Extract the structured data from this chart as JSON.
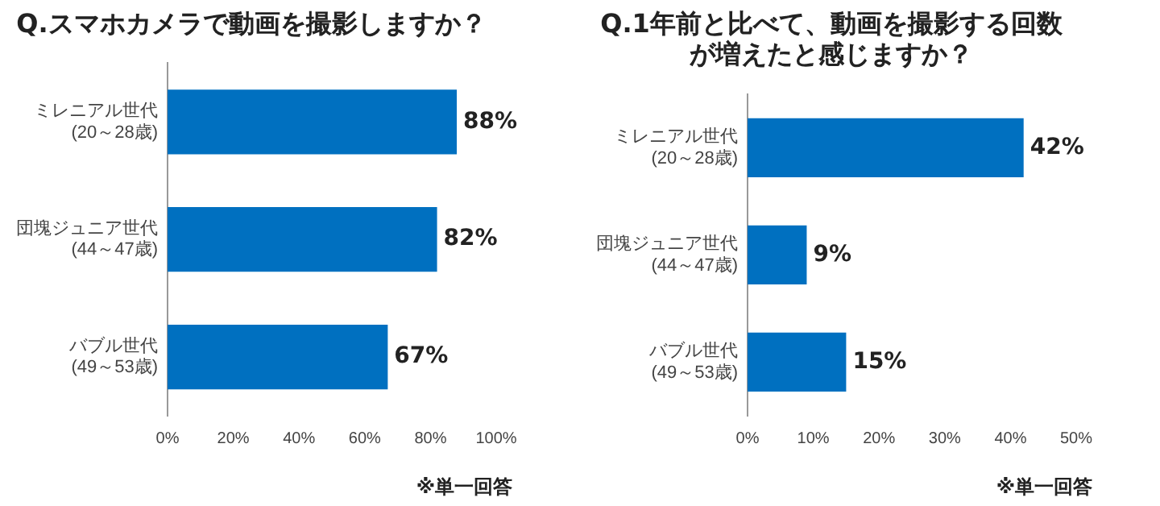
{
  "chart_data": [
    {
      "type": "bar",
      "orientation": "horizontal",
      "title": "Q.スマホカメラで動画を撮影しますか？",
      "categories": [
        "ミレニアル世代(20～28歳)",
        "団塊ジュニア世代(44～47歳)",
        "バブル世代(49～53歳)"
      ],
      "values": [
        88,
        82,
        67
      ],
      "value_labels": [
        "88%",
        "82%",
        "67%"
      ],
      "color": "#0070c0",
      "xlim": [
        0,
        100
      ],
      "xticks": [
        {
          "value": 0,
          "label": "0%"
        },
        {
          "value": 20,
          "label": "20%"
        },
        {
          "value": 40,
          "label": "40%"
        },
        {
          "value": 60,
          "label": "60%"
        },
        {
          "value": 80,
          "label": "80%"
        },
        {
          "value": 100,
          "label": "100%"
        }
      ],
      "annotations": [
        "※単一回答"
      ]
    },
    {
      "type": "bar",
      "orientation": "horizontal",
      "title": "Q.1年前と比べて、動画を撮影する回数が増えたと感じますか？",
      "categories": [
        "ミレニアル世代(20～28歳)",
        "団塊ジュニア世代(44～47歳)",
        "バブル世代(49～53歳)"
      ],
      "values": [
        42,
        9,
        15
      ],
      "value_labels": [
        "42%",
        "9%",
        "15%"
      ],
      "color": "#0070c0",
      "xlim": [
        0,
        50
      ],
      "xticks": [
        {
          "value": 0,
          "label": "0%"
        },
        {
          "value": 10,
          "label": "10%"
        },
        {
          "value": 20,
          "label": "20%"
        },
        {
          "value": 30,
          "label": "30%"
        },
        {
          "value": 40,
          "label": "40%"
        },
        {
          "value": 50,
          "label": "50%"
        }
      ],
      "annotations": [
        "※単一回答"
      ]
    }
  ]
}
